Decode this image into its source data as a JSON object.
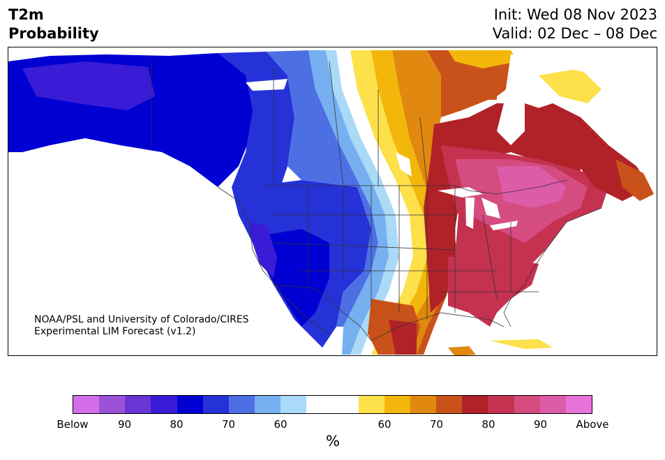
{
  "title": {
    "left_line1": "T2m",
    "left_line2": "Probability",
    "init": "Init: Wed 08 Nov 2023",
    "valid": "Valid: 02 Dec – 08 Dec"
  },
  "credit": {
    "line1": "NOAA/PSL and University of Colorado/CIRES",
    "line2": "Experimental LIM Forecast (v1.2)"
  },
  "colorbar": {
    "unit": "%",
    "ticks": [
      "Below",
      "90",
      "80",
      "70",
      "60",
      "60",
      "70",
      "80",
      "90",
      "Above"
    ],
    "below_colors": [
      "#d46ee8",
      "#9a52d8",
      "#6a35d4",
      "#3a1cd6",
      "#0000d2",
      "#2532d8",
      "#4c70e4",
      "#77b0f0",
      "#aadaf8"
    ],
    "neutral_color": "#ffffff",
    "above_colors": [
      "#fde04a",
      "#f2b70a",
      "#e08810",
      "#c9521a",
      "#b02228",
      "#c43250",
      "#d44c80",
      "#dc5ca8",
      "#e872d8"
    ]
  },
  "map": {
    "region": "North America",
    "cold_color": "#0000d2",
    "warm_color": "#c43250",
    "border_color": "#333333"
  }
}
